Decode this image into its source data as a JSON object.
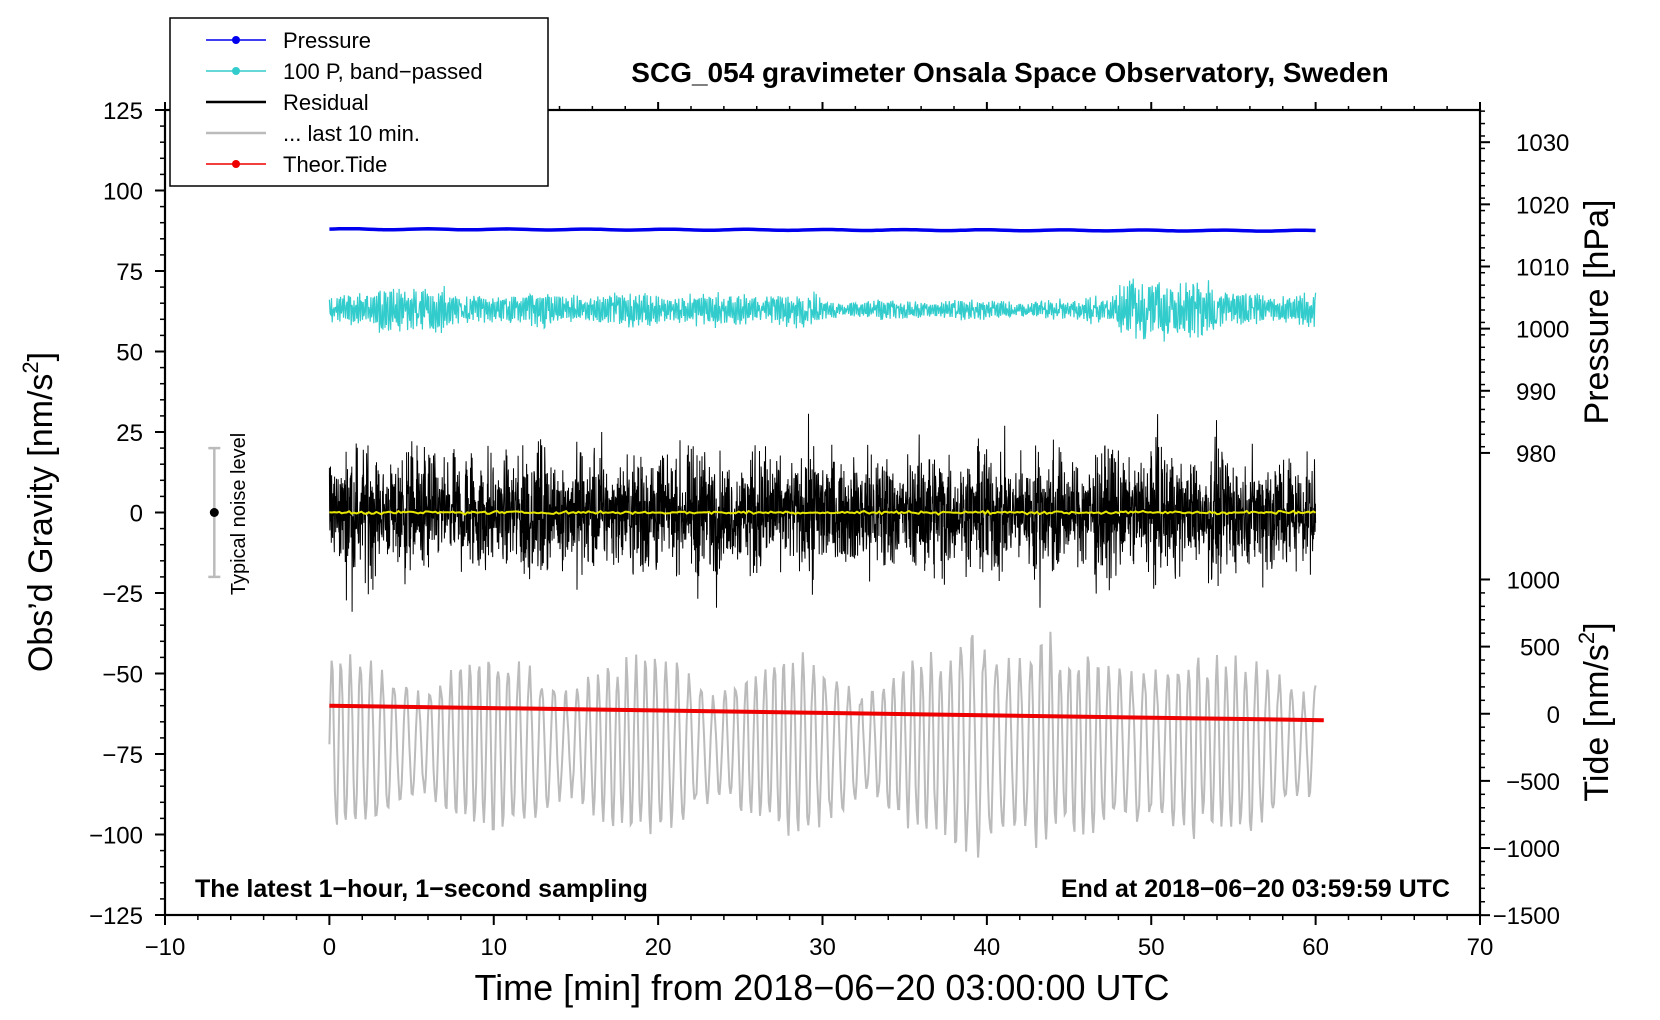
{
  "chart_data": {
    "type": "line",
    "title": "SCG_054 gravimeter Onsala Space Observatory, Sweden",
    "xlabel": "Time [min] from 2018−06−20 03:00:00 UTC",
    "ylabel_main": "Obs’d Gravity [nm/s",
    "ylabel_main_sup": "2",
    "ylabel_main_tail": "]",
    "ylabel_pressure": "Pressure [hPa]",
    "ylabel_tide": "Tide [nm/s",
    "ylabel_tide_sup": "2",
    "ylabel_tide_tail": "]",
    "xlim": [
      -10,
      70
    ],
    "ylim": [
      -125,
      125
    ],
    "x_ticks": [
      "−10",
      "0",
      "10",
      "20",
      "30",
      "40",
      "50",
      "60",
      "70"
    ],
    "y_ticks": [
      "125",
      "100",
      "75",
      "50",
      "25",
      "0",
      "−25",
      "−50",
      "−75",
      "−100",
      "−125"
    ],
    "pressure_axis": {
      "ticks": [
        "1030",
        "1020",
        "1010",
        "1000",
        "990",
        "980"
      ],
      "values": [
        1030,
        1020,
        1010,
        1000,
        990,
        980
      ],
      "gravity_at_1030": 115,
      "gravity_per_hPa": 1.93
    },
    "tide_axis": {
      "ticks": [
        "1000",
        "500",
        "0",
        "−500",
        "−1000",
        "−1500"
      ],
      "values": [
        1000,
        500,
        0,
        -500,
        -1000,
        -1500
      ],
      "gravity_at_0": -62.5,
      "gravity_per_unit": 0.0417
    },
    "legend": [
      {
        "label": "Pressure",
        "color": "#0000ee",
        "marker": true
      },
      {
        "label": "100 P, band−passed",
        "color": "#33cccc",
        "marker": true
      },
      {
        "label": "Residual",
        "color": "#000000",
        "marker": false
      },
      {
        "label": "... last 10 min.",
        "color": "#bbbbbb",
        "marker": false
      },
      {
        "label": "Theor.Tide",
        "color": "#ee0000",
        "marker": true
      }
    ],
    "series": [
      {
        "name": "Pressure",
        "x_range": [
          0,
          60
        ],
        "value_gravity_units": 88.0,
        "end_value": 87.5,
        "color": "#0000ee"
      },
      {
        "name": "100 P, band−passed",
        "x_range": [
          0,
          60
        ],
        "center": 63,
        "amplitude": 7,
        "color": "#33cccc"
      },
      {
        "name": "Residual",
        "x_range": [
          0,
          60
        ],
        "center": 0,
        "amplitude": 30,
        "color": "#000000"
      },
      {
        "name": "Residual smoothed",
        "x_range": [
          0,
          60
        ],
        "center": 0,
        "amplitude": 1,
        "color": "#e6e600"
      },
      {
        "name": "... last 10 min.",
        "x_range": [
          0,
          60
        ],
        "center": -72,
        "amplitude": 27,
        "color": "#bbbbbb"
      },
      {
        "name": "Theor.Tide",
        "x": [
          0,
          60.5
        ],
        "y": [
          -60,
          -64.5
        ],
        "color": "#ee0000"
      }
    ],
    "noise_label": "Typical noise level",
    "noise_bar": {
      "x": -7,
      "center": 0,
      "low": -20,
      "high": 20
    },
    "annotation_left": "The latest 1−hour, 1−second sampling",
    "annotation_right": "End at 2018−06−20 03:59:59 UTC"
  }
}
